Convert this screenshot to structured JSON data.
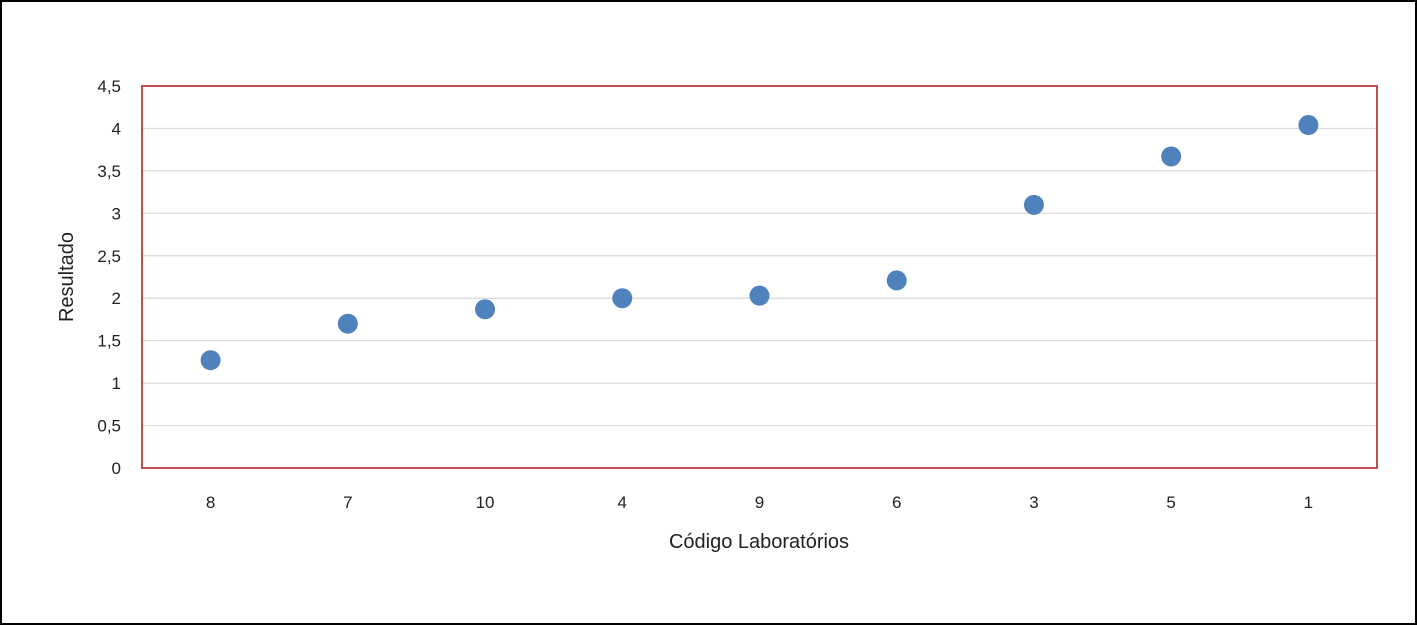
{
  "chart_data": {
    "type": "scatter",
    "title": "",
    "xlabel": "Código Laboratórios",
    "ylabel": "Resultado",
    "categories": [
      "8",
      "7",
      "10",
      "4",
      "9",
      "6",
      "3",
      "5",
      "1"
    ],
    "series": [
      {
        "values": [
          1.27,
          1.7,
          1.87,
          2.0,
          2.03,
          2.21,
          3.1,
          3.67,
          4.04
        ]
      }
    ],
    "ylim": [
      0,
      4.5
    ],
    "yticks": [
      0,
      0.5,
      1,
      1.5,
      2,
      2.5,
      3,
      3.5,
      4,
      4.5
    ],
    "ytick_labels": [
      "0",
      "0,5",
      "1",
      "1,5",
      "2",
      "2,5",
      "3",
      "3,5",
      "4",
      "4,5"
    ],
    "grid": true,
    "legend": "none",
    "colors": {
      "marker": "#4f81bd",
      "plot_border": "#c0504d",
      "gridline": "#d9d9d9",
      "frame": "#000000"
    }
  }
}
